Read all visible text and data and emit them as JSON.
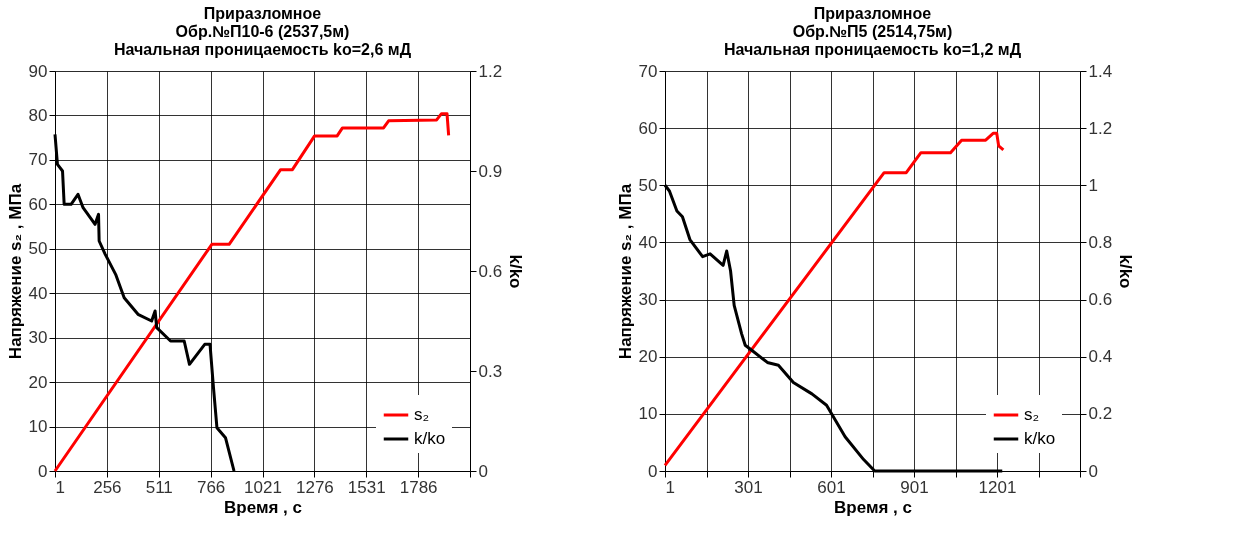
{
  "chart_data": [
    {
      "type": "line",
      "title": "Приразломное\nОбр.№П10-6 (2537,5м)\nНачальная проницаемость ko=2,6 мД",
      "xlabel": "Время , с",
      "ylabel": "Напряжение s₂ , МПа",
      "y2label": "k/ko",
      "grid": true,
      "legend": "bottom right",
      "xlim": [
        1,
        2041
      ],
      "xticks": [
        1,
        256,
        511,
        766,
        1021,
        1276,
        1531,
        1786,
        {
          "value": 2041,
          "label": null
        }
      ],
      "ylim": [
        0,
        90
      ],
      "yticks": [
        0,
        10,
        20,
        30,
        40,
        50,
        60,
        70,
        80,
        90
      ],
      "y2lim": [
        0,
        1.2
      ],
      "y2ticks": [
        0,
        0.3,
        0.6,
        0.9,
        1.2
      ],
      "series": [
        {
          "name": "s₂",
          "color": "#ff0000",
          "x": [
            1,
            772,
            857,
            1110,
            1168,
            1277,
            1388,
            1414,
            1616,
            1641,
            1877,
            1901,
            1928,
            1936
          ],
          "values": [
            0,
            51,
            51,
            67.8,
            67.8,
            75.4,
            75.4,
            77.2,
            77.2,
            78.8,
            79,
            80.4,
            80.4,
            75.5
          ]
        },
        {
          "name": "k/ko",
          "color": "#000000",
          "axis": "y2",
          "x": [
            1,
            13,
            38,
            46,
            80,
            114,
            139,
            198,
            215,
            218,
            248,
            299,
            341,
            409,
            476,
            493,
            501,
            569,
            636,
            662,
            737,
            763,
            780,
            797,
            839,
            881
          ],
          "values": [
            1.01,
            0.92,
            0.9,
            0.8,
            0.8,
            0.83,
            0.79,
            0.74,
            0.77,
            0.69,
            0.65,
            0.59,
            0.52,
            0.47,
            0.45,
            0.48,
            0.43,
            0.39,
            0.39,
            0.32,
            0.38,
            0.38,
            0.25,
            0.13,
            0.1,
            0
          ]
        }
      ]
    },
    {
      "type": "line",
      "title": "Приразломное\nОбр.№П5 (2514,75м)\nНачальная проницаемость ko=1,2 мД",
      "xlabel": "Время , с",
      "ylabel": "Напряжение  s₂ , МПа",
      "y2label": "k/ko",
      "grid": true,
      "legend": "bottom right",
      "xlim": [
        1,
        1501
      ],
      "xticks": [
        1,
        {
          "value": 151,
          "label": null
        },
        301,
        {
          "value": 451,
          "label": null
        },
        601,
        {
          "value": 751,
          "label": null
        },
        901,
        {
          "value": 1051,
          "label": null
        },
        1201,
        {
          "value": 1351,
          "label": null
        },
        {
          "value": 1501,
          "label": null
        }
      ],
      "ylim": [
        0,
        70
      ],
      "yticks": [
        0,
        10,
        20,
        30,
        40,
        50,
        60,
        70
      ],
      "y2lim": [
        0,
        1.4
      ],
      "y2ticks": [
        0,
        0.2,
        0.4,
        0.6,
        0.8,
        1,
        1.2,
        1.4
      ],
      "series": [
        {
          "name": "s₂",
          "color": "#ff0000",
          "x": [
            1,
            793,
            873,
            926,
            1033,
            1073,
            1160,
            1187,
            1200,
            1207,
            1224
          ],
          "values": [
            1,
            52.2,
            52.2,
            55.7,
            55.7,
            57.9,
            57.9,
            59.1,
            59.1,
            56.9,
            56.2
          ]
        },
        {
          "name": "k/ko",
          "color": "#000000",
          "axis": "y2",
          "x": [
            1,
            17,
            44,
            64,
            91,
            137,
            164,
            211,
            224,
            238,
            251,
            278,
            291,
            318,
            371,
            411,
            465,
            532,
            585,
            652,
            719,
            759,
            1220
          ],
          "values": [
            1.0,
            0.98,
            0.91,
            0.89,
            0.81,
            0.75,
            0.76,
            0.72,
            0.77,
            0.7,
            0.58,
            0.48,
            0.44,
            0.42,
            0.38,
            0.37,
            0.31,
            0.27,
            0.23,
            0.12,
            0.04,
            0,
            0
          ]
        }
      ]
    }
  ]
}
